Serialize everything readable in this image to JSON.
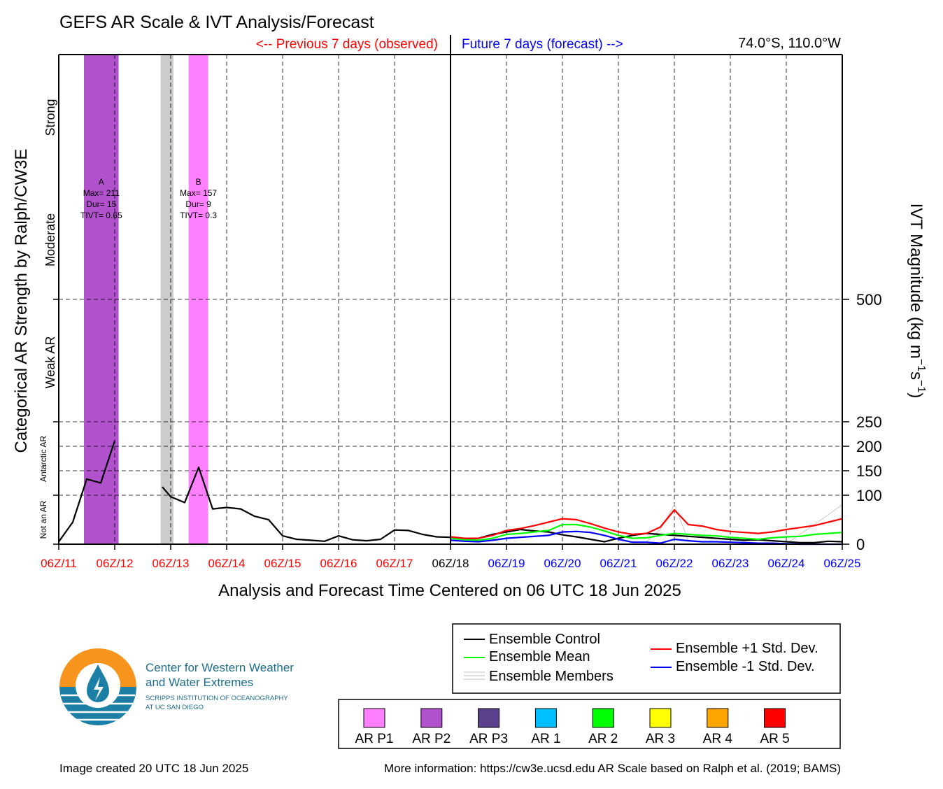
{
  "header": {
    "title": "GEFS AR Scale & IVT Analysis/Forecast",
    "previous_label": "<-- Previous 7 days (observed)",
    "future_label": "Future 7 days (forecast) -->",
    "location": "74.0°S, 110.0°W"
  },
  "chart_data": {
    "type": "line",
    "title": "GEFS AR Scale & IVT Analysis/Forecast",
    "xlabel": "Analysis and Forecast Time Centered on 06 UTC 18 Jun 2025",
    "ylabel_left": "Categorical AR Strength by Ralph/CW3E",
    "ylabel_right": "IVT Magnitude (kg m−1s−1)",
    "ylabel_right_parts": {
      "base": "IVT Magnitude (kg m",
      "exp1": "−1",
      "mid": "s",
      "exp2": "−1",
      "end": ")"
    },
    "x_ticks": [
      "06Z/11",
      "06Z/12",
      "06Z/13",
      "06Z/14",
      "06Z/15",
      "06Z/16",
      "06Z/17",
      "06Z/18",
      "06Z/19",
      "06Z/20",
      "06Z/21",
      "06Z/22",
      "06Z/23",
      "06Z/24",
      "06Z/25"
    ],
    "x_tick_colors": [
      "#ff0000",
      "#ff0000",
      "#ff0000",
      "#ff0000",
      "#ff0000",
      "#ff0000",
      "#ff0000",
      "#000000",
      "#0000ff",
      "#0000ff",
      "#0000ff",
      "#0000ff",
      "#0000ff",
      "#0000ff",
      "#0000ff"
    ],
    "y_ticks": [
      0,
      100,
      150,
      200,
      250,
      500
    ],
    "category_labels": [
      "Strong",
      "Moderate",
      "Weak AR",
      "Antarctic AR",
      "Not an AR"
    ],
    "grid": "dashed",
    "legend_placement": "bottom-right",
    "ar_events": [
      {
        "letter": "A",
        "max": "Max= 211",
        "dur": "Dur= 15",
        "tivt": "TIVT= 0.65",
        "start_day": 0.45,
        "end_day": 1.07,
        "color": "#b052cc",
        "category": "AR P2"
      },
      {
        "letter": "B",
        "max": "Max= 157",
        "dur": "Dur= 9",
        "tivt": "TIVT= 0.3",
        "start_day": 2.32,
        "end_day": 2.67,
        "color": "#ff80ff",
        "category": "AR P1"
      }
    ],
    "gray_band": {
      "start_day": 1.82,
      "end_day": 2.05,
      "color": "#cccccc"
    },
    "series": [
      {
        "name": "Ensemble Control",
        "color": "#000000",
        "x": [
          0,
          0.25,
          0.5,
          0.75,
          1.0
        ],
        "values": [
          5,
          45,
          133,
          125,
          211
        ]
      },
      {
        "name": "Ensemble Control",
        "color": "#000000",
        "x": [
          1.85,
          2.0,
          2.25,
          2.5,
          2.75,
          3.0,
          3.25,
          3.5,
          3.75,
          4.0,
          4.25,
          4.5,
          4.75,
          5.0,
          5.25,
          5.5,
          5.75,
          6.0,
          6.25,
          6.5,
          6.75,
          7.0,
          7.25,
          7.5,
          7.75,
          8.0,
          8.25,
          8.5,
          8.75,
          9.0,
          9.25,
          9.5,
          9.75,
          10.0,
          10.25,
          10.5,
          10.75,
          11.0,
          11.25,
          11.5,
          11.75,
          12.0,
          12.25,
          12.5,
          12.75,
          13.0,
          13.25,
          13.5,
          13.75,
          14.0
        ],
        "values": [
          117,
          97,
          85,
          157,
          72,
          75,
          72,
          57,
          50,
          17,
          10,
          8,
          6,
          17,
          9,
          7,
          10,
          29,
          28,
          20,
          15,
          14,
          10,
          12,
          20,
          25,
          30,
          27,
          25,
          19,
          15,
          10,
          5,
          12,
          18,
          22,
          20,
          18,
          16,
          14,
          12,
          10,
          8,
          9,
          7,
          5,
          3,
          3,
          6,
          5
        ]
      },
      {
        "name": "Ensemble Mean",
        "color": "#00ff00",
        "x": [
          7.0,
          7.25,
          7.5,
          7.75,
          8.0,
          8.25,
          8.5,
          8.75,
          9.0,
          9.25,
          9.5,
          9.75,
          10.0,
          10.25,
          10.5,
          10.75,
          11.0,
          11.25,
          11.5,
          11.75,
          12.0,
          12.25,
          12.5,
          12.75,
          13.0,
          13.25,
          13.5,
          13.75,
          14.0
        ],
        "values": [
          12,
          9,
          8,
          12,
          20,
          22,
          25,
          28,
          40,
          40,
          35,
          27,
          18,
          12,
          13,
          18,
          22,
          20,
          18,
          17,
          14,
          12,
          10,
          13,
          15,
          16,
          20,
          22,
          24
        ]
      },
      {
        "name": "Ensemble +1 Std. Dev.",
        "color": "#ff0000",
        "x": [
          7.0,
          7.25,
          7.5,
          7.75,
          8.0,
          8.25,
          8.5,
          8.75,
          9.0,
          9.25,
          9.5,
          9.75,
          10.0,
          10.25,
          10.5,
          10.75,
          11.0,
          11.25,
          11.5,
          11.75,
          12.0,
          12.25,
          12.5,
          12.75,
          13.0,
          13.25,
          13.5,
          13.75,
          14.0
        ],
        "values": [
          15,
          12,
          12,
          18,
          28,
          32,
          38,
          45,
          52,
          50,
          42,
          33,
          25,
          20,
          22,
          35,
          70,
          40,
          37,
          30,
          26,
          24,
          22,
          25,
          30,
          34,
          38,
          45,
          52
        ]
      },
      {
        "name": "Ensemble -1 Std. Dev.",
        "color": "#0000ff",
        "x": [
          7.0,
          7.25,
          7.5,
          7.75,
          8.0,
          8.25,
          8.5,
          8.75,
          9.0,
          9.25,
          9.5,
          9.75,
          10.0,
          10.25,
          10.5,
          10.75,
          11.0,
          11.25,
          11.5,
          11.75,
          12.0,
          12.25,
          12.5,
          12.75,
          13.0,
          13.25,
          13.5,
          13.75,
          14.0
        ],
        "values": [
          8,
          6,
          5,
          8,
          12,
          14,
          16,
          18,
          25,
          26,
          24,
          18,
          10,
          4,
          4,
          2,
          10,
          7,
          5,
          5,
          4,
          3,
          2,
          2,
          1,
          0,
          0,
          0,
          0
        ]
      }
    ],
    "members_band": {
      "name": "Ensemble Members",
      "color": "#bbbbbb"
    }
  },
  "footer": {
    "created": "Image created 20 UTC 18 Jun 2025",
    "more_info": "More information: https://cw3e.ucsd.edu AR Scale based on Ralph et al. (2019; BAMS)"
  },
  "legend": {
    "items": [
      {
        "label": "Ensemble Control",
        "color": "#000000"
      },
      {
        "label": "Ensemble Mean",
        "color": "#00ff00"
      },
      {
        "label": "Ensemble Members",
        "color": "#bbbbbb"
      },
      {
        "label": "Ensemble +1 Std. Dev.",
        "color": "#ff0000"
      },
      {
        "label": "Ensemble -1 Std. Dev.",
        "color": "#0000ff"
      }
    ]
  },
  "ar_scale": [
    {
      "label": "AR P1",
      "color": "#ff80ff"
    },
    {
      "label": "AR P2",
      "color": "#b052cc"
    },
    {
      "label": "AR P3",
      "color": "#5a3f8c"
    },
    {
      "label": "AR 1",
      "color": "#00bfff"
    },
    {
      "label": "AR 2",
      "color": "#00ff00"
    },
    {
      "label": "AR 3",
      "color": "#ffff00"
    },
    {
      "label": "AR 4",
      "color": "#ffa500"
    },
    {
      "label": "AR 5",
      "color": "#ff0000"
    }
  ],
  "logo": {
    "line1": "Center for Western Weather",
    "line2": "and Water Extremes",
    "line3": "SCRIPPS INSTITUTION OF OCEANOGRAPHY",
    "line4": "AT UC SAN DIEGO",
    "orange": "#f7941d",
    "blue": "#1b7fa6",
    "text_color": "#1d6e8c"
  }
}
